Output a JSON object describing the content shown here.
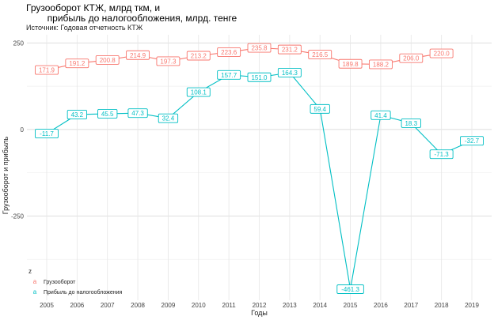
{
  "chart_data": {
    "type": "line",
    "title_line1": "Грузооборот КТЖ, млрд ткм, и",
    "title_line2": "        прибыль до налогообложения, млрд. тенге",
    "subtitle": "Источник: Годовая отчетность КТЖ",
    "xlabel": "Годы",
    "ylabel": "Грузооборот и прибыль",
    "x": [
      2005,
      2006,
      2007,
      2008,
      2009,
      2010,
      2011,
      2012,
      2013,
      2014,
      2015,
      2016,
      2017,
      2018,
      2019
    ],
    "ylim": [
      -475,
      260
    ],
    "yticks": [
      -250,
      0,
      250
    ],
    "grid": true,
    "legend": {
      "title": "z",
      "position": "bottom-left"
    },
    "series": [
      {
        "name": "Грузооборот",
        "color": "#F8766D",
        "x": [
          2005,
          2006,
          2007,
          2008,
          2009,
          2010,
          2011,
          2012,
          2013,
          2014,
          2015,
          2016,
          2017,
          2018
        ],
        "values": [
          171.9,
          191.2,
          200.8,
          214.9,
          197.3,
          213.2,
          223.6,
          235.8,
          231.2,
          216.5,
          189.8,
          188.2,
          206.0,
          220.0
        ],
        "labels": [
          "171.9",
          "191.2",
          "200.8",
          "214.9",
          "197.3",
          "213.2",
          "223.6",
          "235.8",
          "231.2",
          "216.5",
          "189.8",
          "188.2",
          "206.0",
          "220.0"
        ]
      },
      {
        "name": "Прибыль до налогообложения",
        "color": "#00BFC4",
        "x": [
          2005,
          2006,
          2007,
          2008,
          2009,
          2010,
          2011,
          2012,
          2013,
          2014,
          2015,
          2016,
          2017,
          2018,
          2019
        ],
        "values": [
          -11.7,
          43.2,
          45.5,
          47.3,
          32.4,
          108.1,
          157.7,
          151.0,
          164.3,
          59.4,
          -461.3,
          41.4,
          18.3,
          -71.3,
          -32.7
        ],
        "labels": [
          "-11.7",
          "43.2",
          "45.5",
          "47.3",
          "32.4",
          "108.1",
          "157.7",
          "151.0",
          "164.3",
          "59.4",
          "-461.3",
          "41.4",
          "18.3",
          "-71.3",
          "-32.7"
        ]
      }
    ]
  }
}
